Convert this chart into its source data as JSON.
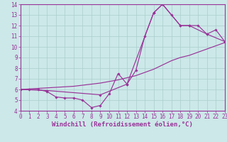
{
  "bg_color": "#cce8e8",
  "line_color": "#993399",
  "grid_color": "#aacece",
  "xlabel": "Windchill (Refroidissement éolien,°C)",
  "xlim": [
    0,
    23
  ],
  "ylim": [
    4,
    14
  ],
  "xticks": [
    0,
    1,
    2,
    3,
    4,
    5,
    6,
    7,
    8,
    9,
    10,
    11,
    12,
    13,
    14,
    15,
    16,
    17,
    18,
    19,
    20,
    21,
    22,
    23
  ],
  "yticks": [
    4,
    5,
    6,
    7,
    8,
    9,
    10,
    11,
    12,
    13,
    14
  ],
  "line1_x": [
    0,
    1,
    2,
    3,
    4,
    5,
    6,
    7,
    8,
    9,
    10,
    11,
    12,
    13,
    14,
    15,
    16,
    17,
    18,
    19,
    20,
    21,
    22,
    23
  ],
  "line1_y": [
    6.0,
    6.0,
    6.0,
    5.8,
    5.3,
    5.2,
    5.2,
    5.0,
    4.3,
    4.5,
    5.6,
    7.5,
    6.5,
    7.8,
    11.0,
    13.2,
    14.0,
    13.0,
    12.0,
    12.0,
    12.0,
    11.2,
    11.6,
    10.5
  ],
  "line2_x": [
    0,
    1,
    2,
    3,
    4,
    5,
    6,
    7,
    8,
    9,
    10,
    11,
    12,
    13,
    14,
    15,
    16,
    17,
    18,
    19,
    20,
    21,
    22,
    23
  ],
  "line2_y": [
    6.0,
    6.05,
    6.1,
    6.15,
    6.2,
    6.25,
    6.3,
    6.4,
    6.5,
    6.6,
    6.75,
    6.9,
    7.1,
    7.3,
    7.6,
    7.9,
    8.3,
    8.7,
    9.0,
    9.2,
    9.5,
    9.8,
    10.1,
    10.4
  ],
  "line3_x": [
    0,
    3,
    9,
    12,
    15,
    16,
    18,
    19,
    21,
    23
  ],
  "line3_y": [
    6.0,
    5.9,
    5.5,
    6.5,
    13.2,
    14.0,
    12.0,
    12.0,
    11.2,
    10.5
  ],
  "tick_fontsize": 5.5,
  "label_fontsize": 6.5
}
